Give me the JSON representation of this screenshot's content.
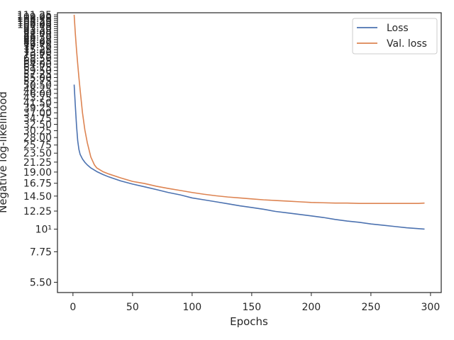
{
  "chart_data": {
    "type": "line",
    "title": "",
    "xlabel": "Epochs",
    "ylabel": "Negative log-likelihood",
    "xscale": "linear",
    "yscale": "log",
    "xlim": [
      -13,
      309
    ],
    "ylim": [
      4.9,
      114
    ],
    "grid": false,
    "legend_position": "top-right",
    "x_ticks": [
      {
        "value": 0,
        "label": "0"
      },
      {
        "value": 50,
        "label": "50"
      },
      {
        "value": 100,
        "label": "100"
      },
      {
        "value": 150,
        "label": "150"
      },
      {
        "value": 200,
        "label": "200"
      },
      {
        "value": 250,
        "label": "250"
      },
      {
        "value": 300,
        "label": "300"
      }
    ],
    "y_ticks": [
      {
        "value": 5.5,
        "label": "5.50"
      },
      {
        "value": 7.75,
        "label": "7.75"
      },
      {
        "value": 10,
        "label": "10¹"
      },
      {
        "value": 12.25,
        "label": "12.25"
      },
      {
        "value": 14.5,
        "label": "14.50"
      },
      {
        "value": 16.75,
        "label": "16.75"
      },
      {
        "value": 19.0,
        "label": "19.00"
      },
      {
        "value": 21.25,
        "label": "21.25"
      },
      {
        "value": 23.5,
        "label": "23.50"
      },
      {
        "value": 25.75,
        "label": "25.75"
      },
      {
        "value": 28.0,
        "label": "28.00"
      },
      {
        "value": 30.25,
        "label": "30.25"
      },
      {
        "value": 32.5,
        "label": "32.50"
      },
      {
        "value": 34.75,
        "label": "34.75"
      },
      {
        "value": 37.0,
        "label": "37.00"
      },
      {
        "value": 39.25,
        "label": "39.25"
      },
      {
        "value": 41.5,
        "label": "41.50"
      },
      {
        "value": 43.75,
        "label": "43.75"
      },
      {
        "value": 46.0,
        "label": "46.00"
      },
      {
        "value": 48.25,
        "label": "48.25"
      },
      {
        "value": 50.5,
        "label": "50.50"
      },
      {
        "value": 52.75,
        "label": "52.75"
      },
      {
        "value": 55.0,
        "label": "55.00"
      },
      {
        "value": 57.25,
        "label": "57.25"
      },
      {
        "value": 59.5,
        "label": "59.50"
      },
      {
        "value": 61.75,
        "label": "61.75"
      },
      {
        "value": 64.0,
        "label": "64.00"
      },
      {
        "value": 66.25,
        "label": "66.25"
      },
      {
        "value": 68.5,
        "label": "68.50"
      },
      {
        "value": 70.75,
        "label": "70.75"
      },
      {
        "value": 73.0,
        "label": "73.00"
      },
      {
        "value": 75.25,
        "label": "75.25"
      },
      {
        "value": 77.5,
        "label": "77.50"
      },
      {
        "value": 79.75,
        "label": "79.75"
      },
      {
        "value": 82.0,
        "label": "82.00"
      },
      {
        "value": 84.25,
        "label": "84.25"
      },
      {
        "value": 86.5,
        "label": "86.50"
      },
      {
        "value": 88.75,
        "label": "88.75"
      },
      {
        "value": 91.0,
        "label": "91.00"
      },
      {
        "value": 93.25,
        "label": "93.25"
      },
      {
        "value": 95.5,
        "label": "95.50"
      },
      {
        "value": 97.75,
        "label": "97.75"
      },
      {
        "value": 100.0,
        "label": "100.00"
      },
      {
        "value": 102.25,
        "label": "102.25"
      },
      {
        "value": 104.5,
        "label": "104.50"
      },
      {
        "value": 106.75,
        "label": "106.75"
      },
      {
        "value": 109.0,
        "label": "109.00"
      },
      {
        "value": 111.25,
        "label": "111.25"
      }
    ],
    "series": [
      {
        "name": "Loss",
        "color": "#4c72b0",
        "points": [
          [
            1,
            50.8
          ],
          [
            2,
            40.0
          ],
          [
            3,
            32.0
          ],
          [
            4,
            27.0
          ],
          [
            5,
            24.5
          ],
          [
            6,
            23.2
          ],
          [
            8,
            22.0
          ],
          [
            10,
            21.2
          ],
          [
            12,
            20.6
          ],
          [
            15,
            19.9
          ],
          [
            20,
            19.1
          ],
          [
            25,
            18.5
          ],
          [
            30,
            18.0
          ],
          [
            40,
            17.2
          ],
          [
            50,
            16.6
          ],
          [
            60,
            16.1
          ],
          [
            70,
            15.6
          ],
          [
            80,
            15.1
          ],
          [
            90,
            14.7
          ],
          [
            100,
            14.2
          ],
          [
            110,
            13.9
          ],
          [
            120,
            13.6
          ],
          [
            130,
            13.3
          ],
          [
            140,
            13.0
          ],
          [
            150,
            12.75
          ],
          [
            160,
            12.5
          ],
          [
            170,
            12.2
          ],
          [
            180,
            12.0
          ],
          [
            190,
            11.8
          ],
          [
            200,
            11.6
          ],
          [
            210,
            11.4
          ],
          [
            220,
            11.15
          ],
          [
            230,
            10.95
          ],
          [
            240,
            10.8
          ],
          [
            250,
            10.6
          ],
          [
            260,
            10.45
          ],
          [
            270,
            10.3
          ],
          [
            280,
            10.15
          ],
          [
            290,
            10.05
          ],
          [
            295,
            10.0
          ]
        ]
      },
      {
        "name": "Val. loss",
        "color": "#dd8452",
        "points": [
          [
            1,
            111.5
          ],
          [
            2,
            90.0
          ],
          [
            3,
            75.0
          ],
          [
            4,
            64.0
          ],
          [
            5,
            55.0
          ],
          [
            6,
            48.0
          ],
          [
            8,
            37.0
          ],
          [
            10,
            30.5
          ],
          [
            12,
            26.5
          ],
          [
            15,
            22.5
          ],
          [
            18,
            20.6
          ],
          [
            20,
            19.9
          ],
          [
            25,
            19.1
          ],
          [
            30,
            18.6
          ],
          [
            40,
            17.8
          ],
          [
            50,
            17.1
          ],
          [
            60,
            16.7
          ],
          [
            70,
            16.2
          ],
          [
            80,
            15.8
          ],
          [
            90,
            15.45
          ],
          [
            100,
            15.1
          ],
          [
            110,
            14.8
          ],
          [
            120,
            14.55
          ],
          [
            130,
            14.35
          ],
          [
            140,
            14.2
          ],
          [
            150,
            14.05
          ],
          [
            160,
            13.9
          ],
          [
            170,
            13.8
          ],
          [
            180,
            13.7
          ],
          [
            190,
            13.6
          ],
          [
            200,
            13.5
          ],
          [
            210,
            13.45
          ],
          [
            220,
            13.4
          ],
          [
            230,
            13.4
          ],
          [
            240,
            13.35
          ],
          [
            250,
            13.35
          ],
          [
            260,
            13.35
          ],
          [
            270,
            13.35
          ],
          [
            280,
            13.35
          ],
          [
            290,
            13.35
          ],
          [
            295,
            13.4
          ]
        ]
      }
    ]
  }
}
